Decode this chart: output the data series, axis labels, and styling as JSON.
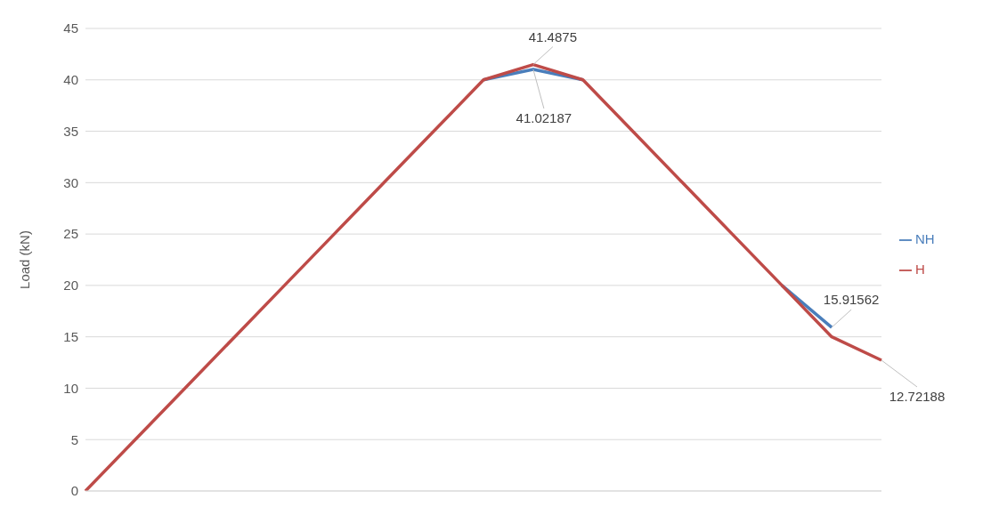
{
  "chart_data": {
    "type": "line",
    "ylabel": "Load (kN)",
    "categories": [
      null,
      null,
      null,
      null,
      null,
      null,
      null,
      null,
      null,
      null,
      null,
      null,
      null,
      null,
      null,
      null,
      null
    ],
    "series": [
      {
        "name": "NH",
        "color": "#4a7ebb",
        "values": [
          null,
          null,
          null,
          null,
          null,
          null,
          null,
          null,
          40,
          41.02187,
          40,
          null,
          null,
          null,
          20,
          15.91562,
          null
        ],
        "value_labels": [
          null,
          null,
          null,
          null,
          null,
          null,
          null,
          null,
          null,
          "41.02187",
          null,
          null,
          null,
          null,
          null,
          "15.91562",
          null
        ]
      },
      {
        "name": "H",
        "color": "#be4b48",
        "values": [
          0,
          5,
          10,
          15,
          20,
          25,
          30,
          35,
          40,
          41.4875,
          40,
          35,
          30,
          25,
          20,
          15,
          12.72188
        ],
        "value_labels": [
          null,
          null,
          null,
          null,
          null,
          null,
          null,
          null,
          null,
          "41.4875",
          null,
          null,
          null,
          null,
          null,
          null,
          "12.72188"
        ]
      }
    ],
    "ylim": [
      0,
      45
    ],
    "yticks": [
      0,
      5,
      10,
      15,
      20,
      25,
      30,
      35,
      40,
      45
    ],
    "grid": "y",
    "legend": "right",
    "marker": "none",
    "line_style": "solid"
  }
}
